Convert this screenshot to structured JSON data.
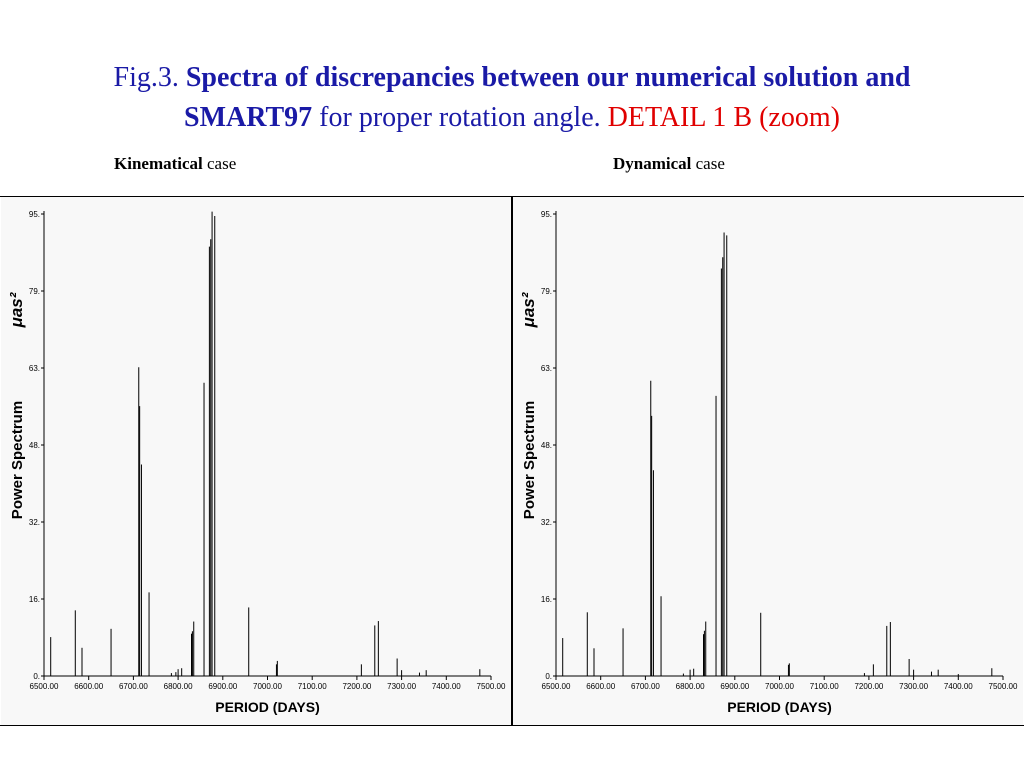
{
  "title": {
    "prefix": "Fig.3.",
    "bold1": "Spectra of discrepancies between our numerical solution and",
    "bold2": "SMART97",
    "normal": "for proper rotation angle.",
    "red": "DETAIL  1 B (zoom)"
  },
  "subtitles": {
    "left_bold": "Kinematical",
    "left_rest": " case",
    "right_bold": "Dynamical",
    "right_rest": " case"
  },
  "colors": {
    "title": "#1a1aa6",
    "highlight": "#e00000",
    "plot_bg": "#f8f8f8",
    "bars": "#000000"
  },
  "chart_data": [
    {
      "type": "bar",
      "panel": "Kinematical case",
      "xlabel": "PERIOD (DAYS)",
      "ylabel": "Power Spectrum",
      "ylabel_unit": "μas²",
      "xlim": [
        6500,
        7500
      ],
      "ylim": [
        0,
        95
      ],
      "xticks": [
        "6500.00",
        "6600.00",
        "6700.00",
        "6800.00",
        "6900.00",
        "7000.00",
        "7100.00",
        "7200.00",
        "7300.00",
        "7400.00",
        "7500.00"
      ],
      "yticks": [
        "0.",
        "16.",
        "32.",
        "48.",
        "63.",
        "79.",
        "95."
      ],
      "grid": false,
      "bars": [
        {
          "x": 6515,
          "y": 8
        },
        {
          "x": 6570,
          "y": 13.5
        },
        {
          "x": 6585,
          "y": 5.8
        },
        {
          "x": 6650,
          "y": 9.7
        },
        {
          "x": 6712,
          "y": 63.5
        },
        {
          "x": 6714,
          "y": 55.5
        },
        {
          "x": 6718,
          "y": 43.5
        },
        {
          "x": 6735,
          "y": 17.2
        },
        {
          "x": 6785,
          "y": 0.6
        },
        {
          "x": 6795,
          "y": 0.8
        },
        {
          "x": 6800,
          "y": 1.4
        },
        {
          "x": 6808,
          "y": 1.6
        },
        {
          "x": 6830,
          "y": 8.7
        },
        {
          "x": 6832,
          "y": 9.2
        },
        {
          "x": 6835,
          "y": 11.2
        },
        {
          "x": 6858,
          "y": 60.3
        },
        {
          "x": 6870,
          "y": 88.3
        },
        {
          "x": 6873,
          "y": 89.8
        },
        {
          "x": 6876,
          "y": 95.5
        },
        {
          "x": 6882,
          "y": 94.6
        },
        {
          "x": 6958,
          "y": 14.1
        },
        {
          "x": 7020,
          "y": 2.4
        },
        {
          "x": 7022,
          "y": 3.1
        },
        {
          "x": 7210,
          "y": 2.4
        },
        {
          "x": 7240,
          "y": 10.4
        },
        {
          "x": 7248,
          "y": 11.3
        },
        {
          "x": 7290,
          "y": 3.6
        },
        {
          "x": 7300,
          "y": 1.2
        },
        {
          "x": 7340,
          "y": 0.7
        },
        {
          "x": 7355,
          "y": 1.2
        },
        {
          "x": 7475,
          "y": 1.4
        }
      ]
    },
    {
      "type": "bar",
      "panel": "Dynamical case",
      "xlabel": "PERIOD (DAYS)",
      "ylabel": "Power Spectrum",
      "ylabel_unit": "μas²",
      "xlim": [
        6500,
        7500
      ],
      "ylim": [
        0,
        95
      ],
      "xticks": [
        "6500.00",
        "6600.00",
        "6700.00",
        "6800.00",
        "6900.00",
        "7000.00",
        "7100.00",
        "7200.00",
        "7300.00",
        "7400.00",
        "7500.00"
      ],
      "yticks": [
        "0.",
        "16.",
        "32.",
        "48.",
        "63.",
        "79.",
        "95."
      ],
      "grid": false,
      "bars": [
        {
          "x": 6515,
          "y": 7.8
        },
        {
          "x": 6570,
          "y": 13.1
        },
        {
          "x": 6585,
          "y": 5.7
        },
        {
          "x": 6650,
          "y": 9.8
        },
        {
          "x": 6712,
          "y": 60.7
        },
        {
          "x": 6714,
          "y": 53.5
        },
        {
          "x": 6718,
          "y": 42.3
        },
        {
          "x": 6735,
          "y": 16.4
        },
        {
          "x": 6785,
          "y": 0.5
        },
        {
          "x": 6800,
          "y": 1.3
        },
        {
          "x": 6808,
          "y": 1.5
        },
        {
          "x": 6830,
          "y": 8.6
        },
        {
          "x": 6832,
          "y": 9.3
        },
        {
          "x": 6835,
          "y": 11.2
        },
        {
          "x": 6858,
          "y": 57.6
        },
        {
          "x": 6870,
          "y": 83.8
        },
        {
          "x": 6873,
          "y": 86.1
        },
        {
          "x": 6876,
          "y": 91.2
        },
        {
          "x": 6882,
          "y": 90.6
        },
        {
          "x": 6958,
          "y": 13.0
        },
        {
          "x": 7020,
          "y": 2.3
        },
        {
          "x": 7022,
          "y": 2.6
        },
        {
          "x": 7190,
          "y": 0.6
        },
        {
          "x": 7210,
          "y": 2.4
        },
        {
          "x": 7240,
          "y": 10.3
        },
        {
          "x": 7248,
          "y": 11.1
        },
        {
          "x": 7290,
          "y": 3.5
        },
        {
          "x": 7300,
          "y": 1.3
        },
        {
          "x": 7340,
          "y": 0.9
        },
        {
          "x": 7355,
          "y": 1.3
        },
        {
          "x": 7400,
          "y": 0.4
        },
        {
          "x": 7475,
          "y": 1.6
        }
      ]
    }
  ]
}
